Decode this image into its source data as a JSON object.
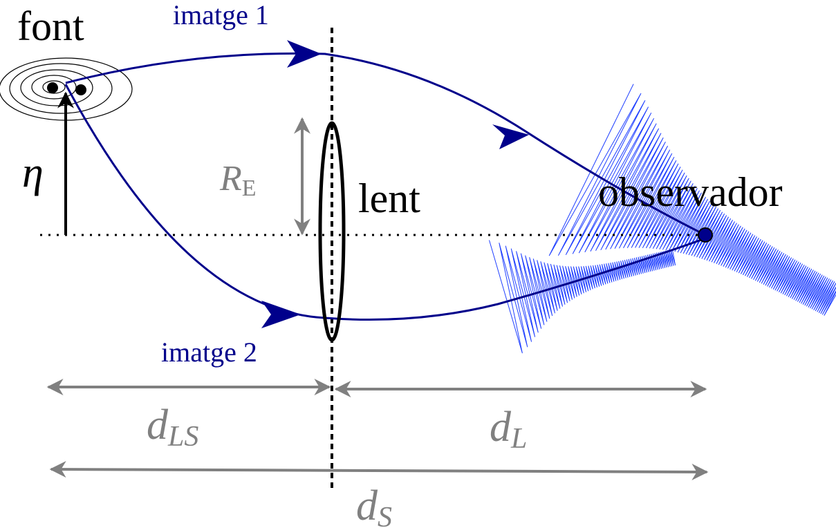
{
  "labels": {
    "source": "font",
    "image1": "imatge 1",
    "image2": "imatge 2",
    "lens": "lent",
    "observer": "observador",
    "eta": "η",
    "einstein_radius": {
      "symbol": "R",
      "subscript": "E"
    },
    "d_ls": {
      "symbol": "d",
      "subscript": "LS"
    },
    "d_l": {
      "symbol": "d",
      "subscript": "L"
    },
    "d_s": {
      "symbol": "d",
      "subscript": "S"
    }
  }
}
